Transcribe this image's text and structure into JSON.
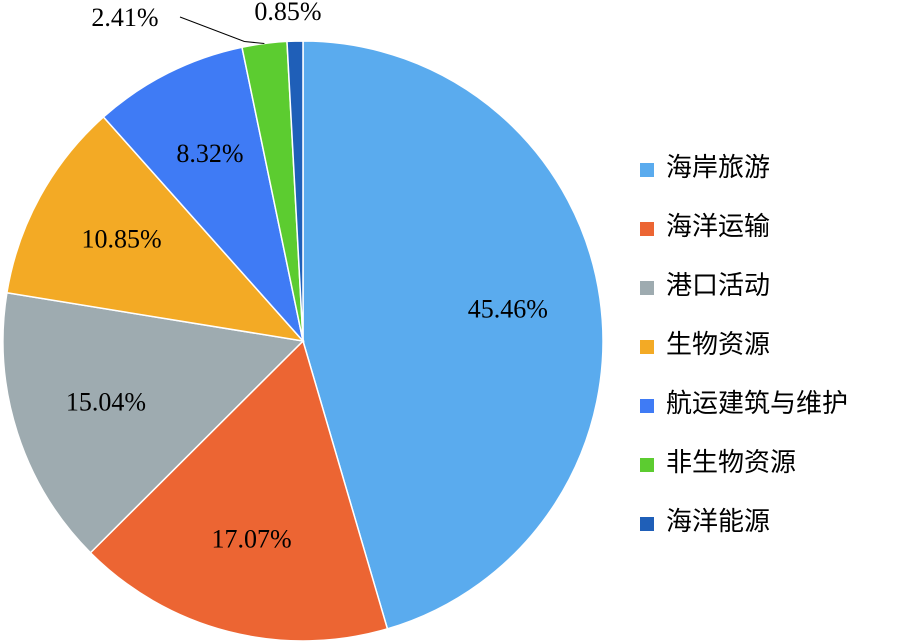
{
  "chart_data": {
    "type": "pie",
    "categories": [
      "海岸旅游",
      "海洋运输",
      "港口活动",
      "生物资源",
      "航运建筑与维护",
      "非生物资源",
      "海洋能源"
    ],
    "values": [
      45.46,
      17.07,
      15.04,
      10.85,
      8.32,
      2.41,
      0.85
    ],
    "value_labels": [
      "45.46%",
      "17.07%",
      "15.04%",
      "10.85%",
      "8.32%",
      "2.41%",
      "0.85%"
    ],
    "colors": [
      "#5aabee",
      "#ec6533",
      "#9eabb0",
      "#f3aa25",
      "#3f7bf5",
      "#5ccc30",
      "#1f5fb8"
    ],
    "legend": "right"
  }
}
